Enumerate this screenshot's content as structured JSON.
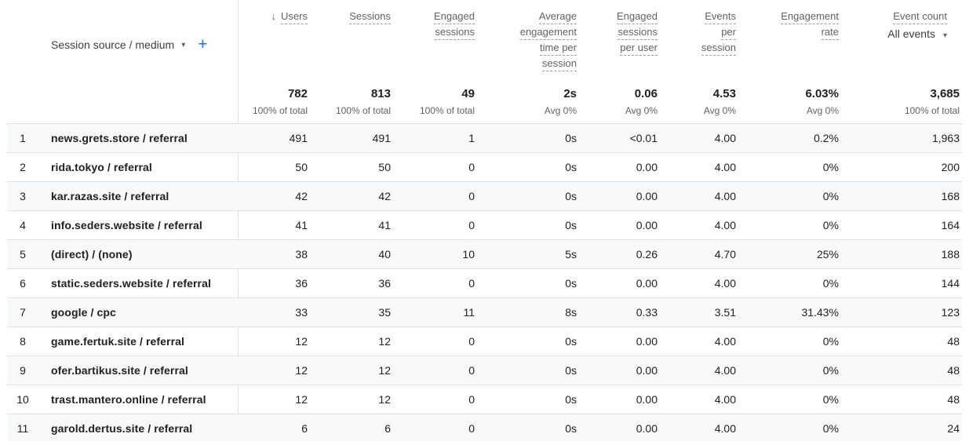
{
  "icons": {
    "sort_descending_arrow": "↓",
    "caret_down": "▾",
    "plus": "+"
  },
  "colors": {
    "accent_blue": "#1a73e8",
    "row_stripe": "#f8f9fa",
    "border": "#e0e0e0",
    "text_primary": "#202124",
    "text_secondary": "#5f6368"
  },
  "table": {
    "dimension": {
      "label": "Session source / medium"
    },
    "columns": [
      {
        "id": "users",
        "lines": [
          "Users"
        ],
        "sorted_descending": true
      },
      {
        "id": "sessions",
        "lines": [
          "Sessions"
        ]
      },
      {
        "id": "engaged_sessions",
        "lines": [
          "Engaged",
          "sessions"
        ]
      },
      {
        "id": "average_engagement_time_per_session",
        "lines": [
          "Average",
          "engagement",
          "time per",
          "session"
        ]
      },
      {
        "id": "engaged_sessions_per_user",
        "lines": [
          "Engaged",
          "sessions",
          "per user"
        ]
      },
      {
        "id": "events_per_session",
        "lines": [
          "Events",
          "per",
          "session"
        ]
      },
      {
        "id": "engagement_rate",
        "lines": [
          "Engagement",
          "rate"
        ]
      },
      {
        "id": "event_count",
        "lines": [
          "Event count"
        ],
        "filter_label": "All events"
      }
    ],
    "totals": [
      {
        "value": "782",
        "sub": "100% of total"
      },
      {
        "value": "813",
        "sub": "100% of total"
      },
      {
        "value": "49",
        "sub": "100% of total"
      },
      {
        "value": "2s",
        "sub": "Avg 0%"
      },
      {
        "value": "0.06",
        "sub": "Avg 0%"
      },
      {
        "value": "4.53",
        "sub": "Avg 0%"
      },
      {
        "value": "6.03%",
        "sub": "Avg 0%"
      },
      {
        "value": "3,685",
        "sub": "100% of total"
      }
    ],
    "rows": [
      {
        "index": "1",
        "source": "news.grets.store / referral",
        "values": [
          "491",
          "491",
          "1",
          "0s",
          "<0.01",
          "4.00",
          "0.2%",
          "1,963"
        ]
      },
      {
        "index": "2",
        "source": "rida.tokyo / referral",
        "values": [
          "50",
          "50",
          "0",
          "0s",
          "0.00",
          "4.00",
          "0%",
          "200"
        ]
      },
      {
        "index": "3",
        "source": "kar.razas.site / referral",
        "values": [
          "42",
          "42",
          "0",
          "0s",
          "0.00",
          "4.00",
          "0%",
          "168"
        ]
      },
      {
        "index": "4",
        "source": "info.seders.website / referral",
        "values": [
          "41",
          "41",
          "0",
          "0s",
          "0.00",
          "4.00",
          "0%",
          "164"
        ]
      },
      {
        "index": "5",
        "source": "(direct) / (none)",
        "values": [
          "38",
          "40",
          "10",
          "5s",
          "0.26",
          "4.70",
          "25%",
          "188"
        ]
      },
      {
        "index": "6",
        "source": "static.seders.website / referral",
        "values": [
          "36",
          "36",
          "0",
          "0s",
          "0.00",
          "4.00",
          "0%",
          "144"
        ]
      },
      {
        "index": "7",
        "source": "google / cpc",
        "values": [
          "33",
          "35",
          "11",
          "8s",
          "0.33",
          "3.51",
          "31.43%",
          "123"
        ]
      },
      {
        "index": "8",
        "source": "game.fertuk.site / referral",
        "values": [
          "12",
          "12",
          "0",
          "0s",
          "0.00",
          "4.00",
          "0%",
          "48"
        ]
      },
      {
        "index": "9",
        "source": "ofer.bartikus.site / referral",
        "values": [
          "12",
          "12",
          "0",
          "0s",
          "0.00",
          "4.00",
          "0%",
          "48"
        ]
      },
      {
        "index": "10",
        "source": "trast.mantero.online / referral",
        "values": [
          "12",
          "12",
          "0",
          "0s",
          "0.00",
          "4.00",
          "0%",
          "48"
        ]
      },
      {
        "index": "11",
        "source": "garold.dertus.site / referral",
        "values": [
          "6",
          "6",
          "0",
          "0s",
          "0.00",
          "4.00",
          "0%",
          "24"
        ]
      }
    ]
  }
}
